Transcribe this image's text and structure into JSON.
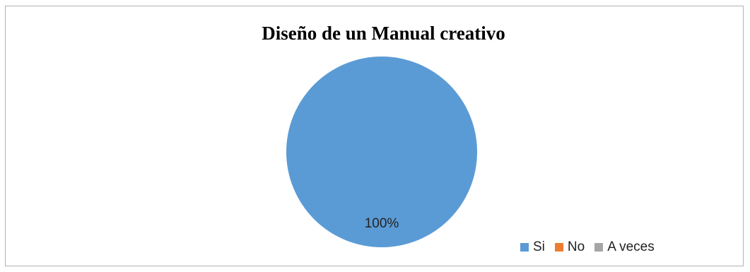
{
  "chart_data": {
    "type": "pie",
    "title": "Diseño de un Manual creativo",
    "categories": [
      "Si",
      "No",
      "A veces"
    ],
    "values": [
      100,
      0,
      0
    ],
    "data_labels": [
      "100%"
    ],
    "colors": [
      "#5b9bd5",
      "#ed7d31",
      "#a5a5a5"
    ],
    "legend_position": "bottom-right"
  }
}
